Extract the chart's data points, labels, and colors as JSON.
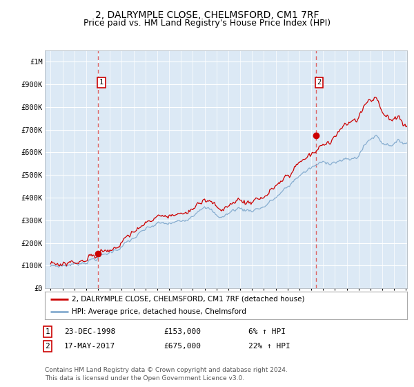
{
  "title": "2, DALRYMPLE CLOSE, CHELMSFORD, CM1 7RF",
  "subtitle": "Price paid vs. HM Land Registry's House Price Index (HPI)",
  "title_fontsize": 10,
  "subtitle_fontsize": 9,
  "background_color": "#ffffff",
  "plot_bg_color": "#dce9f5",
  "grid_color": "#c8d8e8",
  "year_start": 1995,
  "year_end": 2025,
  "ylim": [
    0,
    1050000
  ],
  "yticks": [
    0,
    100000,
    200000,
    300000,
    400000,
    500000,
    600000,
    700000,
    800000,
    900000,
    1000000
  ],
  "ytick_labels": [
    "£0",
    "£100K",
    "£200K",
    "£300K",
    "£400K",
    "£500K",
    "£600K",
    "£700K",
    "£800K",
    "£900K",
    "£1M"
  ],
  "sale1_date_num": 1998.98,
  "sale1_price": 153000,
  "sale1_label": "1",
  "sale1_date_str": "23-DEC-1998",
  "sale1_price_str": "£153,000",
  "sale1_hpi_str": "6% ↑ HPI",
  "sale2_date_num": 2017.38,
  "sale2_price": 675000,
  "sale2_label": "2",
  "sale2_date_str": "17-MAY-2017",
  "sale2_price_str": "£675,000",
  "sale2_hpi_str": "22% ↑ HPI",
  "red_line_color": "#cc0000",
  "blue_line_color": "#88aed0",
  "marker_color": "#cc0000",
  "vline_color": "#dd6666",
  "legend_label_red": "2, DALRYMPLE CLOSE, CHELMSFORD, CM1 7RF (detached house)",
  "legend_label_blue": "HPI: Average price, detached house, Chelmsford",
  "footer": "Contains HM Land Registry data © Crown copyright and database right 2024.\nThis data is licensed under the Open Government Licence v3.0."
}
